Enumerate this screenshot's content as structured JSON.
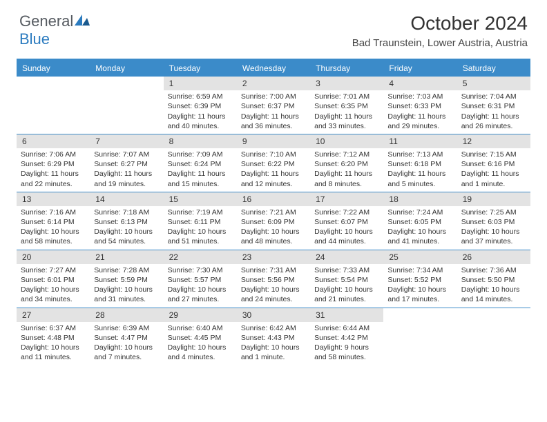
{
  "logo": {
    "text_general": "General",
    "text_blue": "Blue"
  },
  "title": "October 2024",
  "location": "Bad Traunstein, Lower Austria, Austria",
  "colors": {
    "header_bg": "#3b8bc9",
    "daynum_bg": "#e3e3e3",
    "logo_gray": "#555a60",
    "logo_blue": "#2b7bbf"
  },
  "weekdays": [
    "Sunday",
    "Monday",
    "Tuesday",
    "Wednesday",
    "Thursday",
    "Friday",
    "Saturday"
  ],
  "weeks": [
    [
      null,
      null,
      {
        "n": "1",
        "sunrise": "6:59 AM",
        "sunset": "6:39 PM",
        "daylight": "11 hours and 40 minutes."
      },
      {
        "n": "2",
        "sunrise": "7:00 AM",
        "sunset": "6:37 PM",
        "daylight": "11 hours and 36 minutes."
      },
      {
        "n": "3",
        "sunrise": "7:01 AM",
        "sunset": "6:35 PM",
        "daylight": "11 hours and 33 minutes."
      },
      {
        "n": "4",
        "sunrise": "7:03 AM",
        "sunset": "6:33 PM",
        "daylight": "11 hours and 29 minutes."
      },
      {
        "n": "5",
        "sunrise": "7:04 AM",
        "sunset": "6:31 PM",
        "daylight": "11 hours and 26 minutes."
      }
    ],
    [
      {
        "n": "6",
        "sunrise": "7:06 AM",
        "sunset": "6:29 PM",
        "daylight": "11 hours and 22 minutes."
      },
      {
        "n": "7",
        "sunrise": "7:07 AM",
        "sunset": "6:27 PM",
        "daylight": "11 hours and 19 minutes."
      },
      {
        "n": "8",
        "sunrise": "7:09 AM",
        "sunset": "6:24 PM",
        "daylight": "11 hours and 15 minutes."
      },
      {
        "n": "9",
        "sunrise": "7:10 AM",
        "sunset": "6:22 PM",
        "daylight": "11 hours and 12 minutes."
      },
      {
        "n": "10",
        "sunrise": "7:12 AM",
        "sunset": "6:20 PM",
        "daylight": "11 hours and 8 minutes."
      },
      {
        "n": "11",
        "sunrise": "7:13 AM",
        "sunset": "6:18 PM",
        "daylight": "11 hours and 5 minutes."
      },
      {
        "n": "12",
        "sunrise": "7:15 AM",
        "sunset": "6:16 PM",
        "daylight": "11 hours and 1 minute."
      }
    ],
    [
      {
        "n": "13",
        "sunrise": "7:16 AM",
        "sunset": "6:14 PM",
        "daylight": "10 hours and 58 minutes."
      },
      {
        "n": "14",
        "sunrise": "7:18 AM",
        "sunset": "6:13 PM",
        "daylight": "10 hours and 54 minutes."
      },
      {
        "n": "15",
        "sunrise": "7:19 AM",
        "sunset": "6:11 PM",
        "daylight": "10 hours and 51 minutes."
      },
      {
        "n": "16",
        "sunrise": "7:21 AM",
        "sunset": "6:09 PM",
        "daylight": "10 hours and 48 minutes."
      },
      {
        "n": "17",
        "sunrise": "7:22 AM",
        "sunset": "6:07 PM",
        "daylight": "10 hours and 44 minutes."
      },
      {
        "n": "18",
        "sunrise": "7:24 AM",
        "sunset": "6:05 PM",
        "daylight": "10 hours and 41 minutes."
      },
      {
        "n": "19",
        "sunrise": "7:25 AM",
        "sunset": "6:03 PM",
        "daylight": "10 hours and 37 minutes."
      }
    ],
    [
      {
        "n": "20",
        "sunrise": "7:27 AM",
        "sunset": "6:01 PM",
        "daylight": "10 hours and 34 minutes."
      },
      {
        "n": "21",
        "sunrise": "7:28 AM",
        "sunset": "5:59 PM",
        "daylight": "10 hours and 31 minutes."
      },
      {
        "n": "22",
        "sunrise": "7:30 AM",
        "sunset": "5:57 PM",
        "daylight": "10 hours and 27 minutes."
      },
      {
        "n": "23",
        "sunrise": "7:31 AM",
        "sunset": "5:56 PM",
        "daylight": "10 hours and 24 minutes."
      },
      {
        "n": "24",
        "sunrise": "7:33 AM",
        "sunset": "5:54 PM",
        "daylight": "10 hours and 21 minutes."
      },
      {
        "n": "25",
        "sunrise": "7:34 AM",
        "sunset": "5:52 PM",
        "daylight": "10 hours and 17 minutes."
      },
      {
        "n": "26",
        "sunrise": "7:36 AM",
        "sunset": "5:50 PM",
        "daylight": "10 hours and 14 minutes."
      }
    ],
    [
      {
        "n": "27",
        "sunrise": "6:37 AM",
        "sunset": "4:48 PM",
        "daylight": "10 hours and 11 minutes."
      },
      {
        "n": "28",
        "sunrise": "6:39 AM",
        "sunset": "4:47 PM",
        "daylight": "10 hours and 7 minutes."
      },
      {
        "n": "29",
        "sunrise": "6:40 AM",
        "sunset": "4:45 PM",
        "daylight": "10 hours and 4 minutes."
      },
      {
        "n": "30",
        "sunrise": "6:42 AM",
        "sunset": "4:43 PM",
        "daylight": "10 hours and 1 minute."
      },
      {
        "n": "31",
        "sunrise": "6:44 AM",
        "sunset": "4:42 PM",
        "daylight": "9 hours and 58 minutes."
      },
      null,
      null
    ]
  ],
  "labels": {
    "sunrise": "Sunrise:",
    "sunset": "Sunset:",
    "daylight": "Daylight:"
  }
}
